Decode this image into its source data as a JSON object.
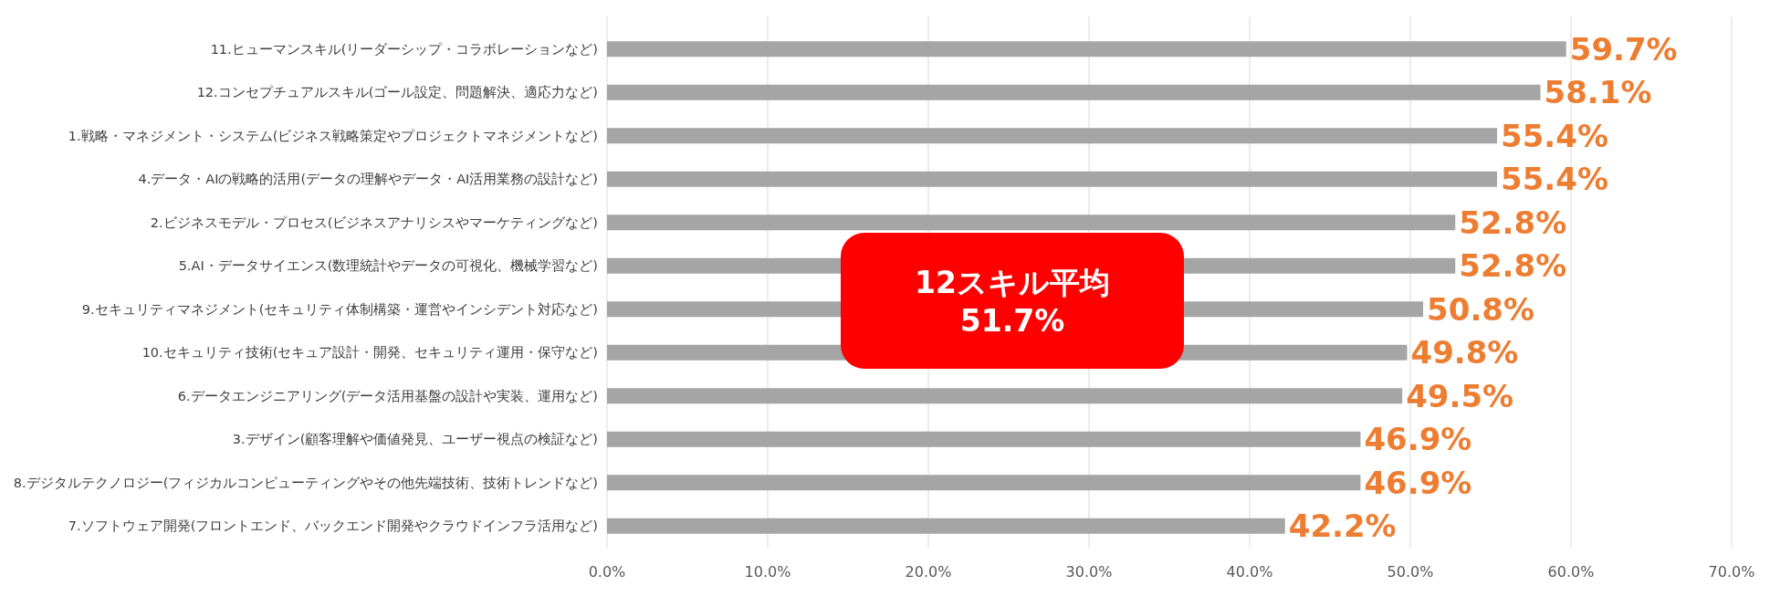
{
  "chart_data": {
    "type": "bar",
    "orientation": "horizontal",
    "categories": [
      "11.ヒューマンスキル(リーダーシップ・コラボレーションなど)",
      "12.コンセプチュアルスキル(ゴール設定、問題解決、適応力など)",
      "1.戦略・マネジメント・システム(ビジネス戦略策定やプロジェクトマネジメントなど)",
      "4.データ・AIの戦略的活用(データの理解やデータ・AI活用業務の設計など)",
      "2.ビジネスモデル・プロセス(ビジネスアナリシスやマーケティングなど)",
      "5.AI・データサイエンス(数理統計やデータの可視化、機械学習など)",
      "9.セキュリティマネジメント(セキュリティ体制構築・運営やインシデント対応など)",
      "10.セキュリティ技術(セキュア設計・開発、セキュリティ運用・保守など)",
      "6.データエンジニアリング(データ活用基盤の設計や実装、運用など)",
      "3.デザイン(顧客理解や価値発見、ユーザー視点の検証など)",
      "8.デジタルテクノロジー(フィジカルコンピューティングやその他先端技術、技術トレンドなど)",
      "7.ソフトウェア開発(フロントエンド、バックエンド開発やクラウドインフラ活用など)"
    ],
    "values": [
      59.7,
      58.1,
      55.4,
      55.4,
      52.8,
      52.8,
      50.8,
      49.8,
      49.5,
      46.9,
      46.9,
      42.2
    ],
    "value_labels": [
      "59.7%",
      "58.1%",
      "55.4%",
      "55.4%",
      "52.8%",
      "52.8%",
      "50.8%",
      "49.8%",
      "49.5%",
      "46.9%",
      "46.9%",
      "42.2%"
    ],
    "color": "#a5a5a5",
    "xlim": [
      0,
      70
    ],
    "xticks": [
      {
        "value": 0,
        "label": "0.0%"
      },
      {
        "value": 10,
        "label": "10.0%"
      },
      {
        "value": 20,
        "label": "20.0%"
      },
      {
        "value": 30,
        "label": "30.0%"
      },
      {
        "value": 40,
        "label": "40.0%"
      },
      {
        "value": 50,
        "label": "50.0%"
      },
      {
        "value": 60,
        "label": "60.0%"
      },
      {
        "value": 70,
        "label": "70.0%"
      }
    ],
    "grid": "x",
    "annotations": [
      "12スキル平均",
      "51.7%"
    ]
  }
}
